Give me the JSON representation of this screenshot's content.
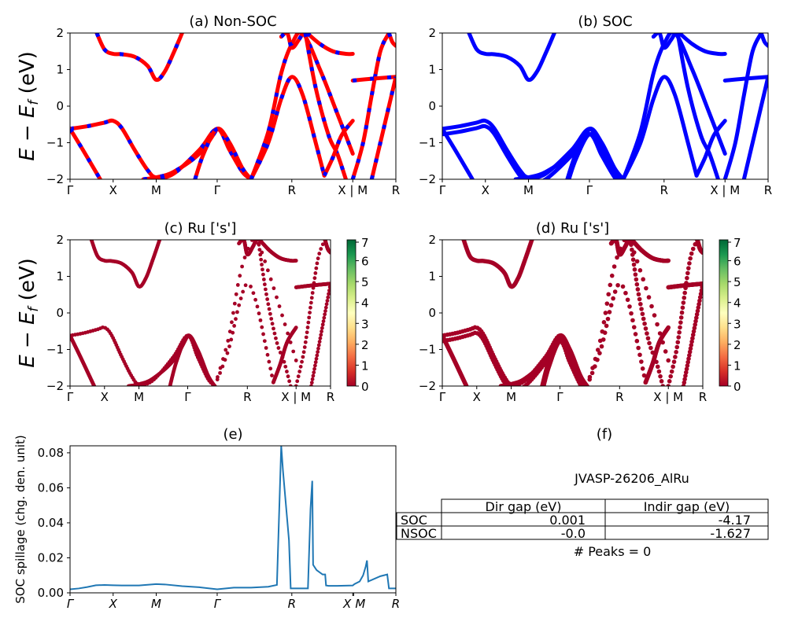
{
  "figure": {
    "material_label": "JVASP-26206_AlRu",
    "peaks_text": "# Peaks = 0"
  },
  "colors": {
    "nonsoc_line": "#ff0000",
    "nonsoc_dash": "#0000ff",
    "soc_line": "#0000ff",
    "projection_point": "#a50026",
    "spillage_line": "#1f77b4"
  },
  "chart_data": [
    {
      "id": "a",
      "type": "line",
      "title": "(a) Non-SOC",
      "ylabel": "E − E_f (eV)",
      "ylim": [
        -2,
        2
      ],
      "yticks": [
        "2",
        "1",
        "0",
        "−1",
        "−2"
      ],
      "xticks": [
        "Γ",
        "X",
        "M",
        "Γ",
        "R",
        "X | M",
        "R"
      ],
      "xtick_positions": [
        0,
        0.5,
        1.0,
        1.707,
        2.573,
        3.28,
        3.78
      ],
      "xlim": [
        0,
        3.78
      ],
      "series": [
        {
          "name": "band1",
          "x": [
            0.31,
            0.4,
            0.5,
            0.6,
            0.75,
            0.9,
            1.0,
            1.1,
            1.2,
            1.3
          ],
          "y": [
            2.0,
            1.55,
            1.43,
            1.42,
            1.35,
            1.1,
            0.72,
            0.95,
            1.45,
            2.0
          ]
        },
        {
          "name": "band2",
          "x": [
            0,
            0.2,
            0.4,
            0.5,
            0.6,
            0.75,
            0.9,
            1.0,
            1.2,
            1.5,
            1.707,
            1.85,
            2.0,
            2.1
          ],
          "y": [
            -0.62,
            -0.55,
            -0.45,
            -0.4,
            -0.6,
            -1.2,
            -1.75,
            -1.95,
            -1.85,
            -1.2,
            -0.62,
            -1.2,
            -1.8,
            -2.0
          ]
        },
        {
          "name": "band3",
          "x": [
            0,
            0.15,
            0.3,
            0.35
          ],
          "y": [
            -0.62,
            -1.2,
            -1.8,
            -2.0
          ]
        },
        {
          "name": "band4",
          "x": [
            0.85,
            1.0,
            1.2,
            1.5,
            1.707
          ],
          "y": [
            -2.0,
            -1.95,
            -1.8,
            -1.3,
            -0.62
          ]
        },
        {
          "name": "band5",
          "x": [
            1.45,
            1.55,
            1.707,
            1.85,
            2.0,
            2.1
          ],
          "y": [
            -2.0,
            -1.3,
            -0.62,
            -1.0,
            -1.7,
            -2.0
          ]
        },
        {
          "name": "band6",
          "x": [
            2.1,
            2.3,
            2.45,
            2.573,
            2.7,
            2.9,
            3.1,
            3.28
          ],
          "y": [
            -2.0,
            -0.7,
            0.9,
            1.7,
            2.0,
            1.0,
            -0.2,
            -1.3
          ]
        },
        {
          "name": "band7",
          "x": [
            2.1,
            2.3,
            2.45,
            2.573,
            2.7,
            2.85,
            2.95
          ],
          "y": [
            -2.0,
            -1.0,
            0.2,
            0.8,
            0.3,
            -1.0,
            -1.9
          ]
        },
        {
          "name": "band8",
          "x": [
            2.45,
            2.52,
            2.573,
            2.65,
            2.7
          ],
          "y": [
            1.9,
            2.0,
            1.6,
            1.8,
            2.0
          ]
        },
        {
          "name": "band9",
          "x": [
            2.75,
            2.9,
            3.05,
            3.2,
            3.28
          ],
          "y": [
            2.0,
            1.7,
            1.5,
            1.43,
            1.43
          ]
        },
        {
          "name": "band10",
          "x": [
            2.73,
            2.85,
            3.0,
            3.1,
            3.2
          ],
          "y": [
            2.0,
            0.5,
            -0.8,
            -1.3,
            -2.0
          ]
        },
        {
          "name": "band11",
          "x": [
            2.95,
            3.05,
            3.15,
            3.28
          ],
          "y": [
            -1.9,
            -1.4,
            -0.8,
            -0.4
          ]
        },
        {
          "name": "band12",
          "x": [
            3.28,
            3.4,
            3.5,
            3.6,
            3.7
          ],
          "y": [
            -2.0,
            -1.0,
            0.3,
            1.5,
            2.0
          ]
        },
        {
          "name": "band13",
          "x": [
            3.28,
            3.5,
            3.78
          ],
          "y": [
            0.7,
            0.75,
            0.8
          ]
        },
        {
          "name": "band14",
          "x": [
            3.5,
            3.6,
            3.7,
            3.78
          ],
          "y": [
            -2.0,
            -1.0,
            0.0,
            0.8
          ]
        },
        {
          "name": "band15",
          "x": [
            3.7,
            3.74,
            3.78
          ],
          "y": [
            2.0,
            1.75,
            1.65
          ]
        }
      ]
    },
    {
      "id": "b",
      "type": "line",
      "title": "(b) SOC",
      "ylim": [
        -2,
        2
      ],
      "yticks": [
        "2",
        "1",
        "0",
        "−1",
        "−2"
      ],
      "xticks": [
        "Γ",
        "X",
        "M",
        "Γ",
        "R",
        "X | M",
        "R"
      ],
      "xtick_positions": [
        0,
        0.5,
        1.0,
        1.707,
        2.573,
        3.28,
        3.78
      ],
      "xlim": [
        0,
        3.78
      ]
    },
    {
      "id": "c",
      "type": "scatter",
      "title": "(c)  Ru ['s']",
      "ylabel": "E − E_f (eV)",
      "ylim": [
        -2,
        2
      ],
      "yticks": [
        "2",
        "1",
        "0",
        "−1",
        "−2"
      ],
      "xticks": [
        "Γ",
        "X",
        "M",
        "Γ",
        "R",
        "X | M",
        "R"
      ],
      "colorbar": {
        "min": 0,
        "max": 7,
        "ticks": [
          "7",
          "6",
          "5",
          "4",
          "3",
          "2",
          "1",
          "0"
        ],
        "colormap": "RdYlGn"
      }
    },
    {
      "id": "d",
      "type": "scatter",
      "title": "(d) Ru ['s']",
      "ylim": [
        -2,
        2
      ],
      "yticks": [
        "2",
        "1",
        "0",
        "−1",
        "−2"
      ],
      "xticks": [
        "Γ",
        "X",
        "M",
        "Γ",
        "R",
        "X | M",
        "R"
      ],
      "colorbar": {
        "min": 0,
        "max": 7,
        "ticks": [
          "7",
          "6",
          "5",
          "4",
          "3",
          "2",
          "1",
          "0"
        ],
        "colormap": "RdYlGn"
      }
    },
    {
      "id": "e",
      "type": "line",
      "title": "(e)",
      "ylabel": "SOC spillage (chg. den. unit)",
      "ylim": [
        0,
        0.084
      ],
      "yticks": [
        "0.08",
        "0.06",
        "0.04",
        "0.02",
        "0.00"
      ],
      "ytick_values": [
        0.08,
        0.06,
        0.04,
        0.02,
        0.0
      ],
      "xticks": [
        "Γ",
        "X",
        "M",
        "Γ",
        "R",
        "X",
        "M",
        "R"
      ],
      "xtick_positions": [
        0,
        0.5,
        1.0,
        1.707,
        2.573,
        3.28,
        3.29,
        3.78
      ],
      "xlim": [
        0,
        3.78
      ],
      "x": [
        0,
        0.1,
        0.2,
        0.3,
        0.4,
        0.5,
        0.6,
        0.8,
        1.0,
        1.1,
        1.3,
        1.5,
        1.707,
        1.9,
        2.1,
        2.3,
        2.4,
        2.45,
        2.47,
        2.54,
        2.56,
        2.6,
        2.76,
        2.79,
        2.81,
        2.82,
        2.86,
        2.93,
        2.96,
        2.97,
        3.0,
        3.1,
        3.28,
        3.3,
        3.36,
        3.4,
        3.43,
        3.445,
        3.46,
        3.6,
        3.68,
        3.7,
        3.78
      ],
      "y": [
        0.002,
        0.0025,
        0.0033,
        0.0043,
        0.0045,
        0.0043,
        0.0042,
        0.0042,
        0.005,
        0.0048,
        0.0038,
        0.0032,
        0.002,
        0.003,
        0.003,
        0.0035,
        0.0045,
        0.084,
        0.07,
        0.03,
        0.0025,
        0.0025,
        0.0025,
        0.048,
        0.064,
        0.016,
        0.013,
        0.0105,
        0.0105,
        0.0042,
        0.004,
        0.004,
        0.0042,
        0.005,
        0.0065,
        0.01,
        0.015,
        0.0185,
        0.0065,
        0.0095,
        0.0105,
        0.0025,
        0.0025
      ]
    },
    {
      "id": "f",
      "type": "table",
      "title": "(f)",
      "columns": [
        "",
        "Dir gap (eV)",
        "Indir gap (eV)"
      ],
      "rows": [
        [
          "SOC",
          "0.001",
          "-4.17"
        ],
        [
          "NSOC",
          "-0.0",
          "-1.627"
        ]
      ]
    }
  ]
}
